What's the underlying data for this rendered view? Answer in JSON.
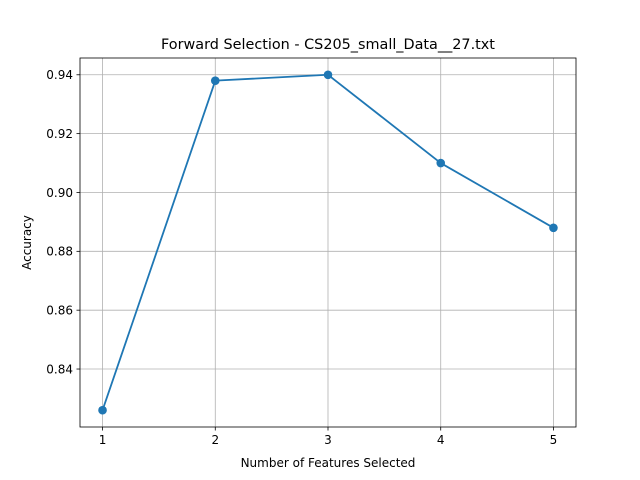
{
  "chart_data": {
    "type": "line",
    "title": "Forward Selection - CS205_small_Data__27.txt",
    "xlabel": "Number of Features Selected",
    "ylabel": "Accuracy",
    "x": [
      1,
      2,
      3,
      4,
      5
    ],
    "series": [
      {
        "values": [
          0.826,
          0.938,
          0.94,
          0.91,
          0.888
        ],
        "color": "#1f77b4"
      }
    ],
    "xticks": [
      1,
      2,
      3,
      4,
      5
    ],
    "yticks": [
      0.84,
      0.86,
      0.88,
      0.9,
      0.92,
      0.94
    ],
    "ytick_labels": [
      "0.84",
      "0.86",
      "0.88",
      "0.90",
      "0.92",
      "0.94"
    ],
    "xlim": [
      0.8,
      5.2
    ],
    "ylim": [
      0.8203,
      0.9457
    ],
    "grid": true,
    "marker": "circle"
  }
}
